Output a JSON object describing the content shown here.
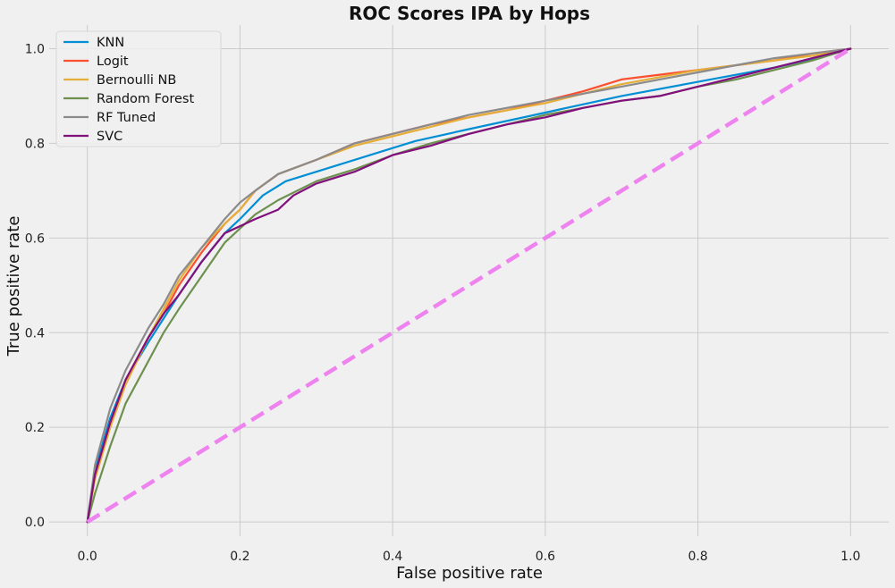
{
  "chart_data": {
    "type": "line",
    "title": "ROC Scores IPA by Hops",
    "xlabel": "False positive rate",
    "ylabel": "True positive rate",
    "xlim": [
      -0.05,
      1.05
    ],
    "ylim": [
      -0.03,
      1.05
    ],
    "xticks": [
      0.0,
      0.2,
      0.4,
      0.6,
      0.8,
      1.0
    ],
    "yticks": [
      0.0,
      0.2,
      0.4,
      0.6,
      0.8,
      1.0
    ],
    "xtick_labels": [
      "0.0",
      "0.2",
      "0.4",
      "0.6",
      "0.8",
      "1.0"
    ],
    "ytick_labels": [
      "0.0",
      "0.2",
      "0.4",
      "0.6",
      "0.8",
      "1.0"
    ],
    "grid": true,
    "legend_position": "top-left",
    "series": [
      {
        "name": "KNN",
        "color": "#008fd5",
        "x": [
          0,
          0.01,
          0.03,
          0.05,
          0.08,
          0.1,
          0.12,
          0.15,
          0.18,
          0.2,
          0.23,
          0.26,
          0.3,
          0.35,
          0.4,
          0.43,
          0.5,
          0.6,
          0.7,
          0.8,
          0.9,
          0.95,
          1.0
        ],
        "y": [
          0,
          0.11,
          0.22,
          0.3,
          0.38,
          0.43,
          0.48,
          0.55,
          0.61,
          0.64,
          0.69,
          0.72,
          0.74,
          0.765,
          0.79,
          0.805,
          0.83,
          0.865,
          0.9,
          0.93,
          0.96,
          0.978,
          1.0
        ]
      },
      {
        "name": "Logit",
        "color": "#fc4f30",
        "x": [
          0,
          0.01,
          0.03,
          0.05,
          0.08,
          0.1,
          0.12,
          0.15,
          0.18,
          0.2,
          0.22,
          0.25,
          0.3,
          0.35,
          0.4,
          0.45,
          0.5,
          0.55,
          0.6,
          0.65,
          0.7,
          0.75,
          0.8,
          0.85,
          0.9,
          0.95,
          1.0
        ],
        "y": [
          0,
          0.1,
          0.21,
          0.3,
          0.39,
          0.44,
          0.5,
          0.57,
          0.63,
          0.66,
          0.7,
          0.735,
          0.765,
          0.8,
          0.82,
          0.84,
          0.855,
          0.87,
          0.89,
          0.91,
          0.935,
          0.945,
          0.955,
          0.965,
          0.975,
          0.99,
          1.0
        ]
      },
      {
        "name": "Bernoulli NB",
        "color": "#e5ae38",
        "x": [
          0,
          0.01,
          0.03,
          0.05,
          0.08,
          0.1,
          0.12,
          0.15,
          0.18,
          0.2,
          0.22,
          0.25,
          0.3,
          0.35,
          0.4,
          0.45,
          0.5,
          0.55,
          0.6,
          0.65,
          0.7,
          0.75,
          0.8,
          0.85,
          0.9,
          0.95,
          1.0
        ],
        "y": [
          0,
          0.09,
          0.2,
          0.29,
          0.39,
          0.45,
          0.51,
          0.58,
          0.63,
          0.66,
          0.7,
          0.735,
          0.765,
          0.795,
          0.815,
          0.835,
          0.855,
          0.87,
          0.885,
          0.905,
          0.925,
          0.94,
          0.955,
          0.965,
          0.975,
          0.985,
          1.0
        ]
      },
      {
        "name": "Random Forest",
        "color": "#6d904f",
        "x": [
          0,
          0.01,
          0.03,
          0.05,
          0.08,
          0.1,
          0.12,
          0.15,
          0.18,
          0.2,
          0.22,
          0.25,
          0.3,
          0.35,
          0.4,
          0.45,
          0.5,
          0.55,
          0.6,
          0.65,
          0.7,
          0.75,
          0.8,
          0.85,
          0.9,
          0.95,
          1.0
        ],
        "y": [
          0,
          0.06,
          0.16,
          0.25,
          0.34,
          0.4,
          0.45,
          0.52,
          0.59,
          0.62,
          0.65,
          0.68,
          0.72,
          0.745,
          0.775,
          0.8,
          0.82,
          0.84,
          0.86,
          0.875,
          0.89,
          0.9,
          0.92,
          0.935,
          0.955,
          0.975,
          1.0
        ]
      },
      {
        "name": "RF Tuned",
        "color": "#8b8b8b",
        "x": [
          0,
          0.01,
          0.03,
          0.05,
          0.08,
          0.1,
          0.12,
          0.15,
          0.18,
          0.2,
          0.22,
          0.25,
          0.3,
          0.35,
          0.4,
          0.45,
          0.5,
          0.55,
          0.6,
          0.65,
          0.7,
          0.75,
          0.8,
          0.85,
          0.9,
          0.95,
          1.0
        ],
        "y": [
          0,
          0.12,
          0.24,
          0.32,
          0.41,
          0.46,
          0.52,
          0.58,
          0.64,
          0.675,
          0.7,
          0.735,
          0.765,
          0.8,
          0.82,
          0.84,
          0.86,
          0.875,
          0.89,
          0.905,
          0.92,
          0.935,
          0.95,
          0.965,
          0.98,
          0.99,
          1.0
        ]
      },
      {
        "name": "SVC",
        "color": "#810f7c",
        "x": [
          0,
          0.01,
          0.03,
          0.05,
          0.08,
          0.1,
          0.12,
          0.15,
          0.18,
          0.2,
          0.22,
          0.25,
          0.27,
          0.3,
          0.35,
          0.4,
          0.45,
          0.5,
          0.55,
          0.6,
          0.65,
          0.7,
          0.75,
          0.8,
          0.85,
          0.9,
          0.95,
          1.0
        ],
        "y": [
          0,
          0.1,
          0.21,
          0.3,
          0.39,
          0.44,
          0.48,
          0.55,
          0.61,
          0.625,
          0.64,
          0.66,
          0.69,
          0.715,
          0.74,
          0.775,
          0.795,
          0.82,
          0.84,
          0.855,
          0.875,
          0.89,
          0.9,
          0.92,
          0.94,
          0.96,
          0.98,
          1.0
        ]
      }
    ],
    "reference_line": {
      "x": [
        0,
        1
      ],
      "y": [
        0,
        1
      ],
      "color": "#ee82ee",
      "style": "dashed"
    }
  }
}
